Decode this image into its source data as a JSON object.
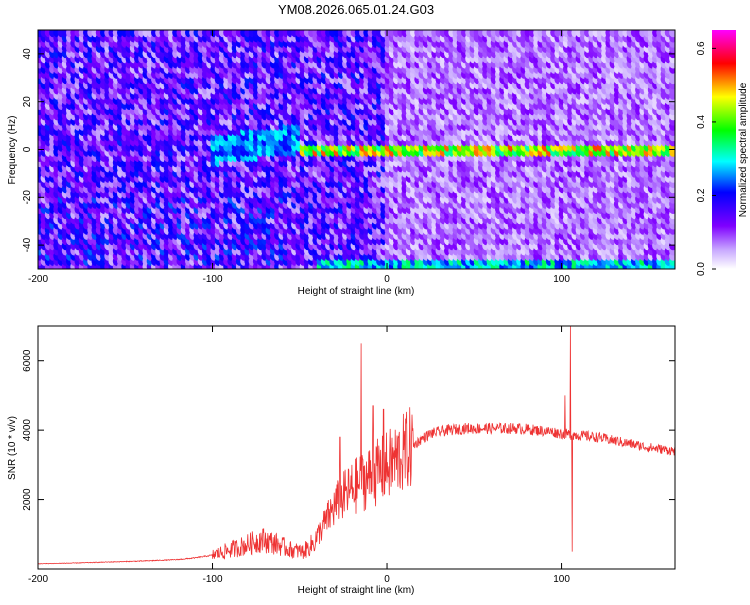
{
  "chart_data": [
    {
      "type": "heatmap",
      "title": "YM08.2026.065.01.24.G03",
      "xlabel": "Height of straight line (km)",
      "ylabel": "Frequency (Hz)",
      "xlim": [
        -200,
        165
      ],
      "ylim": [
        -50,
        50
      ],
      "xticks": [
        -200,
        -100,
        0,
        100
      ],
      "yticks": [
        -40,
        -20,
        0,
        20,
        40
      ],
      "colorbar": {
        "label": "Normalized spectral amplitude",
        "range": [
          0.0,
          0.65
        ],
        "ticks": [
          0.0,
          0.2,
          0.4,
          0.6
        ],
        "tick_labels": [
          "0.0",
          "0.2",
          "0.4",
          "0.6"
        ],
        "colors": [
          "#ffffff",
          "#7f00ff",
          "#0000ff",
          "#00ffff",
          "#00ff00",
          "#ffff00",
          "#ff0000",
          "#ff00ff"
        ]
      },
      "features": {
        "main_line": {
          "freq": 0,
          "x_start": -50,
          "x_end": 165,
          "amplitude": 0.45
        },
        "edge_line": {
          "freq": -48,
          "x_start": -40,
          "x_end": 165,
          "amplitude": 0.3
        },
        "noise_sparse_after_x": 0
      },
      "grid": false
    },
    {
      "type": "line",
      "xlabel": "Height of straight line (km)",
      "ylabel": "SNR (10 * v/v)",
      "xlim": [
        -200,
        165
      ],
      "ylim": [
        0,
        7000
      ],
      "xticks": [
        -200,
        -100,
        0,
        100
      ],
      "yticks": [
        2000,
        4000,
        6000
      ],
      "color": "#ee3333",
      "series_points": [
        [
          -200,
          150
        ],
        [
          -180,
          170
        ],
        [
          -160,
          200
        ],
        [
          -140,
          230
        ],
        [
          -120,
          270
        ],
        [
          -110,
          320
        ],
        [
          -100,
          400
        ],
        [
          -90,
          550
        ],
        [
          -80,
          700
        ],
        [
          -72,
          850
        ],
        [
          -65,
          750
        ],
        [
          -55,
          550
        ],
        [
          -48,
          500
        ],
        [
          -42,
          750
        ],
        [
          -36,
          1300
        ],
        [
          -30,
          1800
        ],
        [
          -25,
          2100
        ],
        [
          -20,
          2300
        ],
        [
          -15,
          2500
        ],
        [
          -10,
          2650
        ],
        [
          -5,
          2800
        ],
        [
          0,
          2950
        ],
        [
          5,
          3150
        ],
        [
          10,
          3350
        ],
        [
          15,
          3550
        ],
        [
          20,
          3750
        ],
        [
          25,
          3900
        ],
        [
          35,
          4000
        ],
        [
          45,
          4050
        ],
        [
          55,
          4050
        ],
        [
          65,
          4050
        ],
        [
          75,
          4050
        ],
        [
          85,
          4000
        ],
        [
          95,
          3950
        ],
        [
          100,
          3900
        ],
        [
          110,
          3850
        ],
        [
          120,
          3800
        ],
        [
          130,
          3700
        ],
        [
          140,
          3600
        ],
        [
          150,
          3500
        ],
        [
          165,
          3400
        ]
      ],
      "spikes": [
        {
          "x": -27,
          "y": 3800
        },
        {
          "x": -15,
          "y": 6500
        },
        {
          "x": -8,
          "y": 4700
        },
        {
          "x": -2,
          "y": 4600
        },
        {
          "x": 102,
          "y": 5000
        },
        {
          "x": 105,
          "y": 7000
        },
        {
          "x": 106,
          "y": 500
        }
      ],
      "grid": false
    }
  ]
}
